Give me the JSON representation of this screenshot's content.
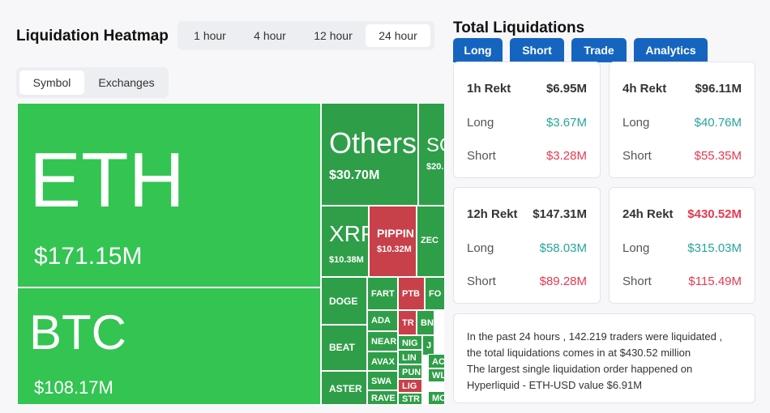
{
  "heatmap": {
    "title": "Liquidation Heatmap",
    "time_tabs": [
      "1 hour",
      "4 hour",
      "12 hour",
      "24 hour"
    ],
    "view_tabs": [
      "Symbol",
      "Exchanges"
    ],
    "tiles": [
      {
        "label": "ETH",
        "value": "$171.15M"
      },
      {
        "label": "BTC",
        "value": "$108.17M"
      },
      {
        "label": "Others",
        "value": "$30.70M"
      },
      {
        "label": "SO",
        "value": "$20."
      },
      {
        "label": "XRP",
        "value": "$10.38M"
      },
      {
        "label": "PIPPIN",
        "value": "$10.32M"
      },
      {
        "label": "ZEC"
      },
      {
        "label": "DOGE"
      },
      {
        "label": "BEAT"
      },
      {
        "label": "ASTER"
      },
      {
        "label": "FART"
      },
      {
        "label": "PTB"
      },
      {
        "label": "FO"
      },
      {
        "label": "ADA"
      },
      {
        "label": "TR"
      },
      {
        "label": "BN"
      },
      {
        "label": "NEAR"
      },
      {
        "label": "NIG"
      },
      {
        "label": "J"
      },
      {
        "label": "AVAX"
      },
      {
        "label": "LIN"
      },
      {
        "label": "AC"
      },
      {
        "label": "SWA"
      },
      {
        "label": "PUN"
      },
      {
        "label": "WL"
      },
      {
        "label": "LIG"
      },
      {
        "label": "RAVE"
      },
      {
        "label": "STR"
      },
      {
        "label": "MO"
      }
    ]
  },
  "totals": {
    "title": "Total Liquidations",
    "buttons": [
      "Long",
      "Short",
      "Trade",
      "Analytics"
    ],
    "cards": [
      {
        "period": "1h Rekt",
        "total": "$6.95M",
        "long_label": "Long",
        "long": "$3.67M",
        "short_label": "Short",
        "short": "$3.28M"
      },
      {
        "period": "4h Rekt",
        "total": "$96.11M",
        "long_label": "Long",
        "long": "$40.76M",
        "short_label": "Short",
        "short": "$55.35M"
      },
      {
        "period": "12h Rekt",
        "total": "$147.31M",
        "long_label": "Long",
        "long": "$58.03M",
        "short_label": "Short",
        "short": "$89.28M"
      },
      {
        "period": "24h Rekt",
        "total": "$430.52M",
        "long_label": "Long",
        "long": "$315.03M",
        "short_label": "Short",
        "short": "$115.49M"
      }
    ],
    "summary": [
      "In the past 24 hours , 142.219 traders were liquidated ,",
      "the total liquidations comes in at $430.52 million",
      "The largest single liquidation order happened on",
      "Hyperliquid - ETH-USD value $6.91M"
    ]
  }
}
